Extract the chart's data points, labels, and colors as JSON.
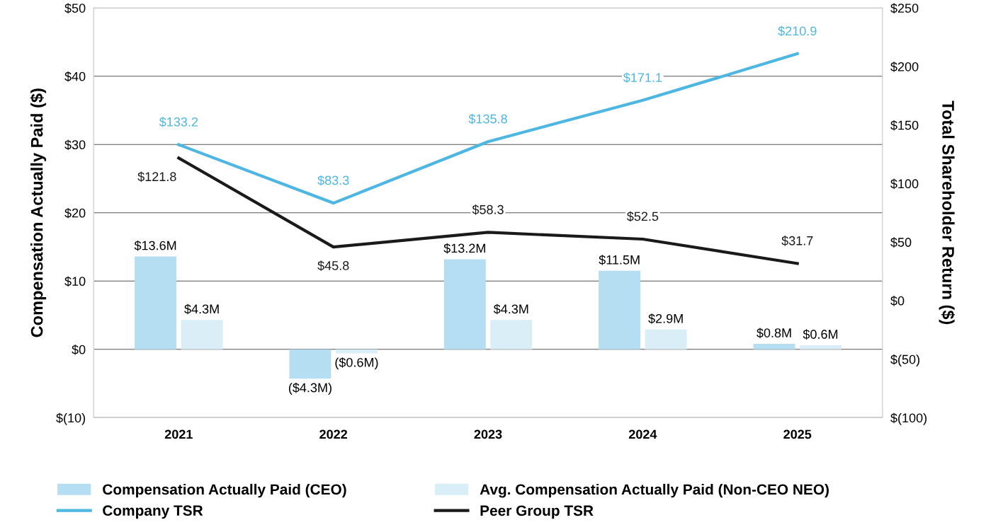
{
  "chart_data": {
    "type": "bar",
    "categories": [
      "2021",
      "2022",
      "2023",
      "2024",
      "2025"
    ],
    "ylabel": "Compensation Actually Paid ($)",
    "y2label": "Total Shareholder Return ($)",
    "ylim": [
      -10,
      50
    ],
    "yticks": [
      {
        "value": -10,
        "label": "$(10)"
      },
      {
        "value": 0,
        "label": "$0"
      },
      {
        "value": 10,
        "label": "$10"
      },
      {
        "value": 20,
        "label": "$20"
      },
      {
        "value": 30,
        "label": "$30"
      },
      {
        "value": 40,
        "label": "$40"
      },
      {
        "value": 50,
        "label": "$50"
      }
    ],
    "y2lim": [
      -100,
      250
    ],
    "y2ticks": [
      {
        "value": -100,
        "label": "$(100)"
      },
      {
        "value": -50,
        "label": "$(50)"
      },
      {
        "value": 0,
        "label": "$0"
      },
      {
        "value": 50,
        "label": "$50"
      },
      {
        "value": 100,
        "label": "$100"
      },
      {
        "value": 150,
        "label": "$150"
      },
      {
        "value": 200,
        "label": "$200"
      },
      {
        "value": 250,
        "label": "$250"
      }
    ],
    "grid": "y",
    "legend": "bottom",
    "series": [
      {
        "name": "Compensation Actually Paid (CEO)",
        "color": "#b5def2",
        "values": [
          13.6,
          -4.3,
          13.2,
          11.5,
          0.8
        ],
        "value_labels": [
          "$13.6M",
          "($4.3M)",
          "$13.2M",
          "$11.5M",
          "$0.8M"
        ]
      },
      {
        "name": "Avg. Compensation Actually Paid (Non-CEO NEO)",
        "color": "#daeef8",
        "values": [
          4.3,
          -0.6,
          4.3,
          2.9,
          0.6
        ],
        "value_labels": [
          "$4.3M",
          "($0.6M)",
          "$4.3M",
          "$2.9M",
          "$0.6M"
        ]
      },
      {
        "name": "Company TSR",
        "type": "line",
        "axis": "y2",
        "color": "#4db6e2",
        "values": [
          133.2,
          83.3,
          135.8,
          171.1,
          210.9
        ],
        "value_labels": [
          "$133.2",
          "$83.3",
          "$135.8",
          "$171.1",
          "$210.9"
        ]
      },
      {
        "name": "Peer Group TSR",
        "type": "line",
        "axis": "y2",
        "color": "#1a1a1a",
        "values": [
          121.8,
          45.8,
          58.3,
          52.5,
          31.7
        ],
        "value_labels": [
          "$121.8",
          "$45.8",
          "$58.3",
          "$52.5",
          "$31.7"
        ]
      }
    ]
  }
}
